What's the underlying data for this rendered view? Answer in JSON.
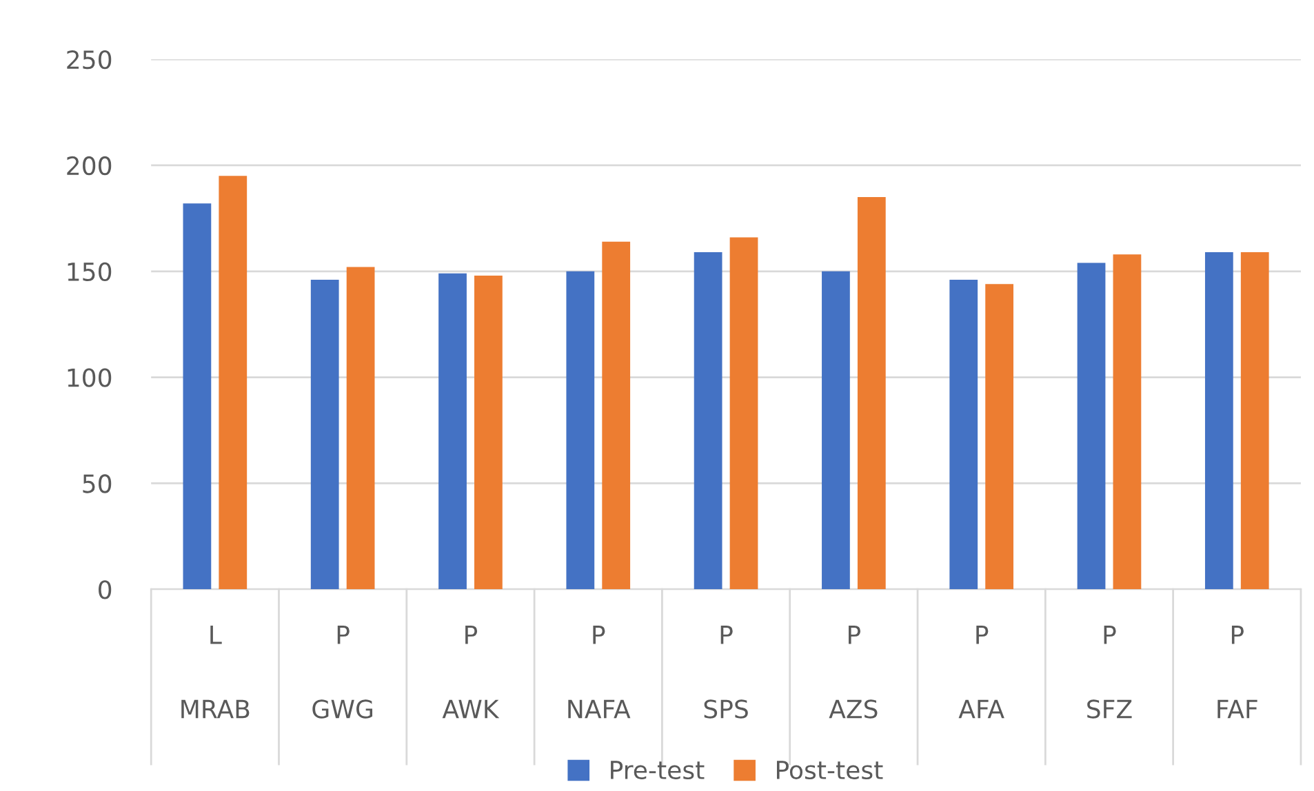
{
  "chart_data": {
    "type": "bar",
    "categories": [
      "L\nMRAB",
      "P\nGWG",
      "P\nAWK",
      "P\nNAFA",
      "P\nSPS",
      "P\nAZS",
      "P\nAFA",
      "P\nSFZ",
      "P\nFAF"
    ],
    "series": [
      {
        "name": "Pre-test",
        "color": "#4472c4",
        "values": [
          182,
          146,
          149,
          150,
          159,
          150,
          146,
          154,
          159
        ]
      },
      {
        "name": "Post-test",
        "color": "#ed7d31",
        "values": [
          195,
          152,
          148,
          164,
          166,
          185,
          144,
          158,
          159
        ]
      }
    ],
    "ylim": [
      0,
      250
    ],
    "yticks": [
      0,
      50,
      100,
      150,
      200,
      250
    ],
    "grid": "y",
    "legend": "bottom"
  }
}
